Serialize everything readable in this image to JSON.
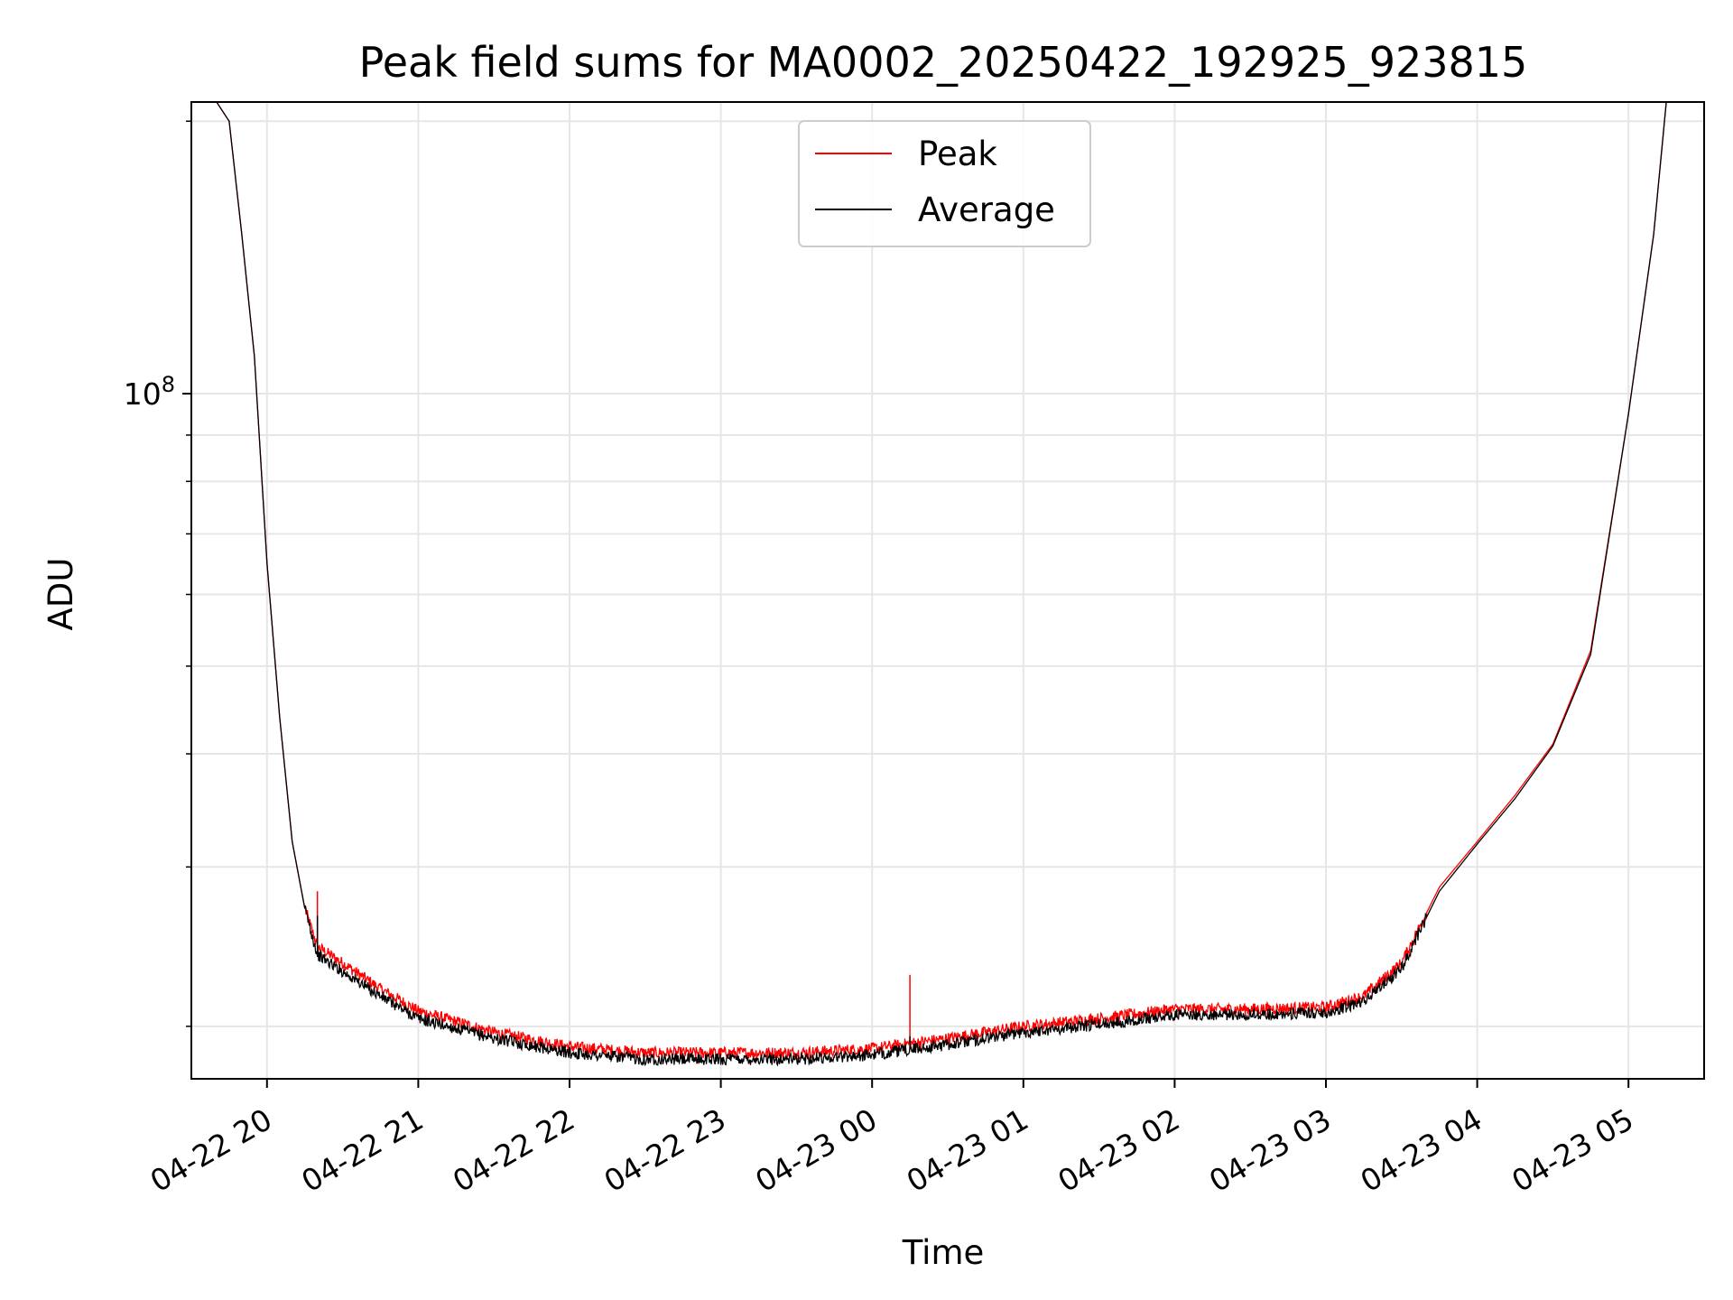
{
  "chart_data": {
    "type": "line",
    "title": "Peak field sums for MA0002_20250422_192925_923815",
    "xlabel": "Time",
    "ylabel": "ADU",
    "y_scale": "log",
    "xlim": [
      "2025-04-22 19:30",
      "2025-04-23 05:30"
    ],
    "ylim": [
      17500000,
      210000000
    ],
    "grid": true,
    "legend_position": "upper center",
    "x_ticks": [
      "04-22 20",
      "04-22 21",
      "04-22 22",
      "04-22 23",
      "04-23 00",
      "04-23 01",
      "04-23 02",
      "04-23 03",
      "04-23 04",
      "04-23 05"
    ],
    "y_ticks": [
      {
        "value": 100000000,
        "base": "10",
        "exponent": "8"
      }
    ],
    "y_minor_ticks": [
      20000000,
      30000000,
      40000000,
      50000000,
      60000000,
      70000000,
      80000000,
      90000000,
      200000000
    ],
    "x": [
      "2025-04-22 19:30",
      "2025-04-22 19:40",
      "2025-04-22 19:45",
      "2025-04-22 19:50",
      "2025-04-22 19:55",
      "2025-04-22 20:00",
      "2025-04-22 20:05",
      "2025-04-22 20:10",
      "2025-04-22 20:15",
      "2025-04-22 20:20",
      "2025-04-22 20:30",
      "2025-04-22 20:45",
      "2025-04-22 21:00",
      "2025-04-22 21:30",
      "2025-04-22 22:00",
      "2025-04-22 22:30",
      "2025-04-22 23:00",
      "2025-04-22 23:30",
      "2025-04-23 00:00",
      "2025-04-23 00:30",
      "2025-04-23 01:00",
      "2025-04-23 01:30",
      "2025-04-23 02:00",
      "2025-04-23 02:30",
      "2025-04-23 03:00",
      "2025-04-23 03:15",
      "2025-04-23 03:30",
      "2025-04-23 03:45",
      "2025-04-23 04:00",
      "2025-04-23 04:15",
      "2025-04-23 04:30",
      "2025-04-23 04:45",
      "2025-04-23 05:00",
      "2025-04-23 05:10",
      "2025-04-23 05:15",
      "2025-04-23 05:30"
    ],
    "series": [
      {
        "name": "Peak",
        "color": "#ff0000",
        "values": [
          210000000,
          210000000,
          200000000,
          150000000,
          110000000,
          65000000,
          44000000,
          32000000,
          27000000,
          24500000,
          23500000,
          22000000,
          20800000,
          19700000,
          19000000,
          18700000,
          18700000,
          18700000,
          18900000,
          19400000,
          20000000,
          20400000,
          20900000,
          20900000,
          21000000,
          21600000,
          23500000,
          28500000,
          32000000,
          36000000,
          41000000,
          52000000,
          95000000,
          150000000,
          210000000,
          210000000
        ],
        "spikes": [
          {
            "x": "2025-04-22 20:20",
            "y": 28200000
          },
          {
            "x": "2025-04-23 00:15",
            "y": 22800000
          }
        ]
      },
      {
        "name": "Average",
        "color": "#000000",
        "values": [
          210000000,
          210000000,
          200000000,
          150000000,
          110000000,
          65000000,
          44000000,
          32000000,
          27000000,
          24000000,
          23000000,
          21600000,
          20400000,
          19400000,
          18700000,
          18400000,
          18400000,
          18400000,
          18600000,
          19100000,
          19700000,
          20100000,
          20600000,
          20600000,
          20700000,
          21300000,
          23200000,
          28200000,
          31800000,
          35700000,
          40800000,
          51500000,
          95000000,
          150000000,
          210000000,
          210000000
        ],
        "spikes": [
          {
            "x": "2025-04-22 20:20",
            "y": 26500000
          },
          {
            "x": "2025-04-23 00:15",
            "y": 19500000
          }
        ]
      }
    ]
  }
}
